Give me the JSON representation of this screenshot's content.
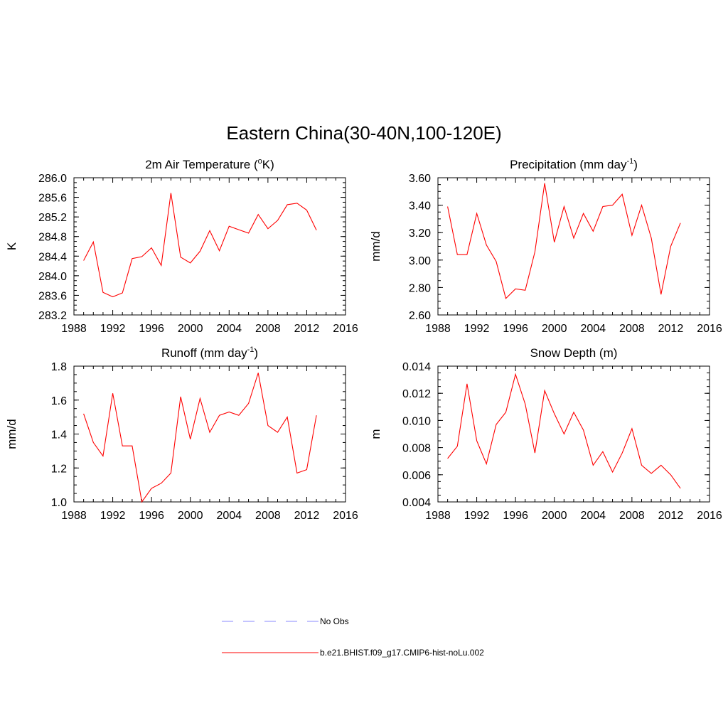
{
  "title": "Eastern China(30-40N,100-120E)",
  "colors": {
    "model": "#ff0000",
    "obs": "#a0a0ff",
    "axis": "#000000"
  },
  "legend": {
    "obs_label": "No Obs",
    "model_label": "b.e21.BHIST.f09_g17.CMIP6-hist-noLu.002"
  },
  "chart_data": [
    {
      "type": "line",
      "title": "2m Air Temperature (",
      "title_sup": "o",
      "title_after": "K)",
      "xlabel": "",
      "ylabel": "K",
      "xlim": [
        1988,
        2016
      ],
      "xticks": [
        1988,
        1992,
        1996,
        2000,
        2004,
        2008,
        2012,
        2016
      ],
      "ylim": [
        283.2,
        286.0
      ],
      "yticks": [
        "283.2",
        "283.6",
        "284.0",
        "284.4",
        "284.8",
        "285.2",
        "285.6",
        "286.0"
      ],
      "yminor": 0.1,
      "x": [
        1989,
        1990,
        1991,
        1992,
        1993,
        1994,
        1995,
        1996,
        1997,
        1998,
        1999,
        2000,
        2001,
        2002,
        2003,
        2004,
        2005,
        2006,
        2007,
        2008,
        2009,
        2010,
        2011,
        2012,
        2013
      ],
      "series": [
        {
          "values": [
            284.31,
            284.69,
            283.66,
            283.57,
            283.65,
            284.35,
            284.39,
            284.57,
            284.21,
            285.69,
            284.38,
            284.26,
            284.5,
            284.92,
            284.51,
            285.01,
            284.94,
            284.87,
            285.25,
            284.96,
            285.13,
            285.45,
            285.48,
            285.34,
            284.93
          ]
        }
      ]
    },
    {
      "type": "line",
      "title": "Precipitation (mm day",
      "title_sup": "-1",
      "title_after": ")",
      "xlabel": "",
      "ylabel": "mm/d",
      "xlim": [
        1988,
        2016
      ],
      "xticks": [
        1988,
        1992,
        1996,
        2000,
        2004,
        2008,
        2012,
        2016
      ],
      "ylim": [
        2.6,
        3.6
      ],
      "yticks": [
        "2.60",
        "2.80",
        "3.00",
        "3.20",
        "3.40",
        "3.60"
      ],
      "yminor": 0.05,
      "x": [
        1989,
        1990,
        1991,
        1992,
        1993,
        1994,
        1995,
        1996,
        1997,
        1998,
        1999,
        2000,
        2001,
        2002,
        2003,
        2004,
        2005,
        2006,
        2007,
        2008,
        2009,
        2010,
        2011,
        2012,
        2013
      ],
      "series": [
        {
          "values": [
            3.39,
            3.04,
            3.04,
            3.34,
            3.11,
            2.99,
            2.72,
            2.79,
            2.78,
            3.06,
            3.56,
            3.13,
            3.39,
            3.16,
            3.34,
            3.21,
            3.39,
            3.4,
            3.48,
            3.18,
            3.4,
            3.16,
            2.75,
            3.1,
            3.27
          ]
        }
      ]
    },
    {
      "type": "line",
      "title": "Runoff (mm day",
      "title_sup": "-1",
      "title_after": ")",
      "xlabel": "",
      "ylabel": "mm/d",
      "xlim": [
        1988,
        2016
      ],
      "xticks": [
        1988,
        1992,
        1996,
        2000,
        2004,
        2008,
        2012,
        2016
      ],
      "ylim": [
        1.0,
        1.8
      ],
      "yticks": [
        "1.0",
        "1.2",
        "1.4",
        "1.6",
        "1.8"
      ],
      "yminor": 0.05,
      "x": [
        1989,
        1990,
        1991,
        1992,
        1993,
        1994,
        1995,
        1996,
        1997,
        1998,
        1999,
        2000,
        2001,
        2002,
        2003,
        2004,
        2005,
        2006,
        2007,
        2008,
        2009,
        2010,
        2011,
        2012,
        2013
      ],
      "series": [
        {
          "values": [
            1.52,
            1.35,
            1.27,
            1.64,
            1.33,
            1.33,
            1.0,
            1.08,
            1.11,
            1.17,
            1.62,
            1.37,
            1.61,
            1.41,
            1.51,
            1.53,
            1.51,
            1.58,
            1.76,
            1.45,
            1.41,
            1.5,
            1.17,
            1.19,
            1.51
          ]
        }
      ]
    },
    {
      "type": "line",
      "title": "Snow Depth (m)",
      "title_sup": "",
      "title_after": "",
      "xlabel": "",
      "ylabel": "m",
      "xlim": [
        1988,
        2016
      ],
      "xticks": [
        1988,
        1992,
        1996,
        2000,
        2004,
        2008,
        2012,
        2016
      ],
      "ylim": [
        0.004,
        0.014
      ],
      "yticks": [
        "0.004",
        "0.006",
        "0.008",
        "0.010",
        "0.012",
        "0.014"
      ],
      "yminor": 0.0005,
      "x": [
        1989,
        1990,
        1991,
        1992,
        1993,
        1994,
        1995,
        1996,
        1997,
        1998,
        1999,
        2000,
        2001,
        2002,
        2003,
        2004,
        2005,
        2006,
        2007,
        2008,
        2009,
        2010,
        2011,
        2012,
        2013
      ],
      "series": [
        {
          "values": [
            0.0072,
            0.0081,
            0.0127,
            0.0085,
            0.0068,
            0.0097,
            0.0106,
            0.0134,
            0.0112,
            0.0076,
            0.0122,
            0.0105,
            0.009,
            0.0106,
            0.0093,
            0.0067,
            0.0077,
            0.0062,
            0.0076,
            0.0094,
            0.0067,
            0.0061,
            0.0067,
            0.006,
            0.005
          ]
        }
      ]
    }
  ]
}
